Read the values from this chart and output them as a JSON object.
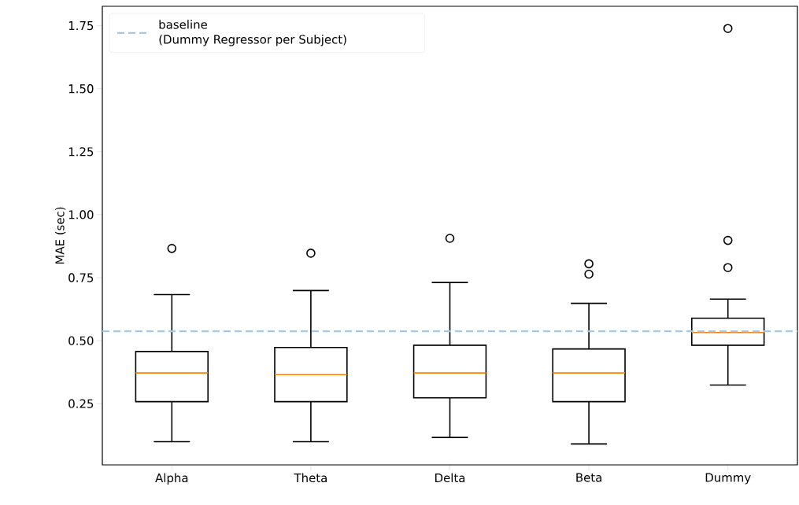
{
  "chart_data": {
    "type": "box",
    "categories": [
      "Alpha",
      "Theta",
      "Delta",
      "Beta",
      "Dummy"
    ],
    "ylabel": "MAE (sec)",
    "ylim": [
      0.007,
      1.827
    ],
    "yticks": [
      {
        "value": 0.25,
        "label": "0.25"
      },
      {
        "value": 0.5,
        "label": "0.50"
      },
      {
        "value": 0.75,
        "label": "0.75"
      },
      {
        "value": 1.0,
        "label": "1.00"
      },
      {
        "value": 1.25,
        "label": "1.25"
      },
      {
        "value": 1.5,
        "label": "1.50"
      },
      {
        "value": 1.75,
        "label": "1.75"
      }
    ],
    "boxes": [
      {
        "low": 0.099,
        "q1": 0.258,
        "median": 0.372,
        "q3": 0.457,
        "high": 0.683,
        "outliers": [
          0.866
        ]
      },
      {
        "low": 0.099,
        "q1": 0.258,
        "median": 0.365,
        "q3": 0.473,
        "high": 0.699,
        "outliers": [
          0.847
        ]
      },
      {
        "low": 0.116,
        "q1": 0.273,
        "median": 0.372,
        "q3": 0.482,
        "high": 0.731,
        "outliers": [
          0.906
        ]
      },
      {
        "low": 0.09,
        "q1": 0.258,
        "median": 0.372,
        "q3": 0.467,
        "high": 0.648,
        "outliers": [
          0.805,
          0.764
        ]
      },
      {
        "low": 0.324,
        "q1": 0.482,
        "median": 0.532,
        "q3": 0.589,
        "high": 0.665,
        "outliers": [
          1.739,
          0.898,
          0.79
        ]
      }
    ],
    "ref_lines": [
      {
        "axis": "y",
        "value": 0.537,
        "label": "baseline\n(Dummy Regressor per Subject)",
        "color": "#a6c8e2",
        "line_style": "dashed"
      }
    ],
    "legend": "top left",
    "grid": false
  }
}
